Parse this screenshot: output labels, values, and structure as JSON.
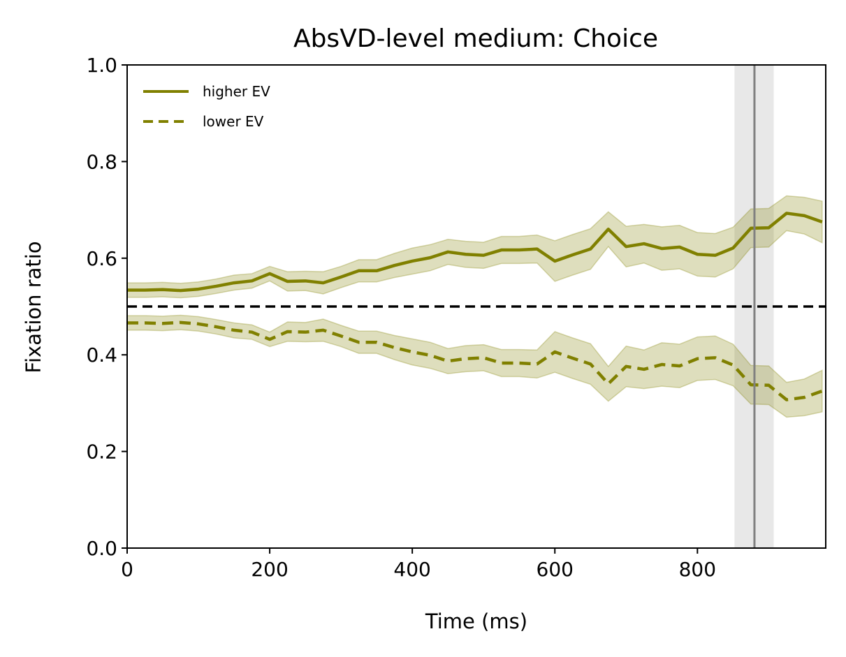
{
  "chart_data": {
    "type": "line",
    "title": "AbsVD-level medium: Choice",
    "xlabel": "Time (ms)",
    "ylabel": "Fixation ratio",
    "xlim": [
      0,
      980
    ],
    "ylim": [
      0.0,
      1.0
    ],
    "xticks": [
      0,
      200,
      400,
      600,
      800
    ],
    "xtick_labels": [
      "0",
      "200",
      "400",
      "600",
      "800"
    ],
    "yticks": [
      0.0,
      0.2,
      0.4,
      0.6,
      0.8,
      1.0
    ],
    "ytick_labels": [
      "0.0",
      "0.2",
      "0.4",
      "0.6",
      "0.8",
      "1.0"
    ],
    "grid": false,
    "legend_position": "top-left",
    "color": "#808000",
    "x": [
      0,
      25,
      50,
      75,
      100,
      125,
      150,
      175,
      200,
      225,
      250,
      275,
      300,
      325,
      350,
      375,
      400,
      425,
      450,
      475,
      500,
      525,
      550,
      575,
      600,
      625,
      650,
      675,
      700,
      725,
      750,
      775,
      800,
      825,
      850,
      875,
      900,
      925,
      950,
      975
    ],
    "series": [
      {
        "name": "higher EV",
        "style": "solid",
        "values": [
          0.534,
          0.534,
          0.535,
          0.533,
          0.536,
          0.542,
          0.549,
          0.553,
          0.568,
          0.552,
          0.553,
          0.549,
          0.561,
          0.574,
          0.574,
          0.585,
          0.594,
          0.601,
          0.613,
          0.608,
          0.606,
          0.617,
          0.617,
          0.619,
          0.594,
          0.607,
          0.619,
          0.66,
          0.624,
          0.63,
          0.62,
          0.623,
          0.608,
          0.606,
          0.621,
          0.662,
          0.663,
          0.693,
          0.688,
          0.675
        ],
        "lower": [
          0.519,
          0.519,
          0.52,
          0.518,
          0.521,
          0.527,
          0.534,
          0.538,
          0.553,
          0.532,
          0.533,
          0.526,
          0.539,
          0.551,
          0.551,
          0.56,
          0.567,
          0.574,
          0.587,
          0.581,
          0.579,
          0.589,
          0.589,
          0.59,
          0.552,
          0.565,
          0.577,
          0.624,
          0.582,
          0.59,
          0.575,
          0.578,
          0.563,
          0.561,
          0.578,
          0.622,
          0.623,
          0.657,
          0.65,
          0.632
        ],
        "upper": [
          0.549,
          0.549,
          0.55,
          0.548,
          0.551,
          0.557,
          0.565,
          0.568,
          0.583,
          0.572,
          0.573,
          0.572,
          0.583,
          0.597,
          0.597,
          0.61,
          0.621,
          0.628,
          0.639,
          0.635,
          0.633,
          0.645,
          0.645,
          0.648,
          0.636,
          0.649,
          0.661,
          0.696,
          0.666,
          0.67,
          0.665,
          0.668,
          0.653,
          0.651,
          0.664,
          0.702,
          0.703,
          0.729,
          0.726,
          0.718
        ]
      },
      {
        "name": "lower EV",
        "style": "dashed",
        "values": [
          0.466,
          0.466,
          0.465,
          0.467,
          0.464,
          0.458,
          0.451,
          0.447,
          0.432,
          0.448,
          0.447,
          0.451,
          0.439,
          0.426,
          0.426,
          0.415,
          0.406,
          0.399,
          0.387,
          0.392,
          0.394,
          0.383,
          0.383,
          0.381,
          0.406,
          0.393,
          0.381,
          0.34,
          0.376,
          0.37,
          0.38,
          0.377,
          0.392,
          0.394,
          0.379,
          0.338,
          0.337,
          0.307,
          0.312,
          0.325
        ],
        "lower": [
          0.451,
          0.451,
          0.45,
          0.452,
          0.449,
          0.443,
          0.435,
          0.432,
          0.417,
          0.428,
          0.427,
          0.428,
          0.417,
          0.403,
          0.403,
          0.39,
          0.379,
          0.372,
          0.361,
          0.365,
          0.367,
          0.355,
          0.355,
          0.352,
          0.364,
          0.351,
          0.339,
          0.304,
          0.334,
          0.33,
          0.335,
          0.332,
          0.347,
          0.349,
          0.336,
          0.298,
          0.297,
          0.271,
          0.274,
          0.282
        ],
        "upper": [
          0.481,
          0.481,
          0.48,
          0.482,
          0.479,
          0.473,
          0.466,
          0.462,
          0.447,
          0.468,
          0.467,
          0.474,
          0.461,
          0.449,
          0.449,
          0.44,
          0.433,
          0.426,
          0.413,
          0.419,
          0.421,
          0.411,
          0.411,
          0.41,
          0.448,
          0.435,
          0.423,
          0.376,
          0.418,
          0.41,
          0.425,
          0.422,
          0.437,
          0.439,
          0.422,
          0.378,
          0.377,
          0.343,
          0.35,
          0.368
        ]
      }
    ],
    "reference_line": {
      "y": 0.5,
      "style": "dashed",
      "color": "#000000"
    },
    "vertical_marker": {
      "x": 880,
      "band": [
        852,
        907
      ],
      "color": "#808080"
    }
  }
}
